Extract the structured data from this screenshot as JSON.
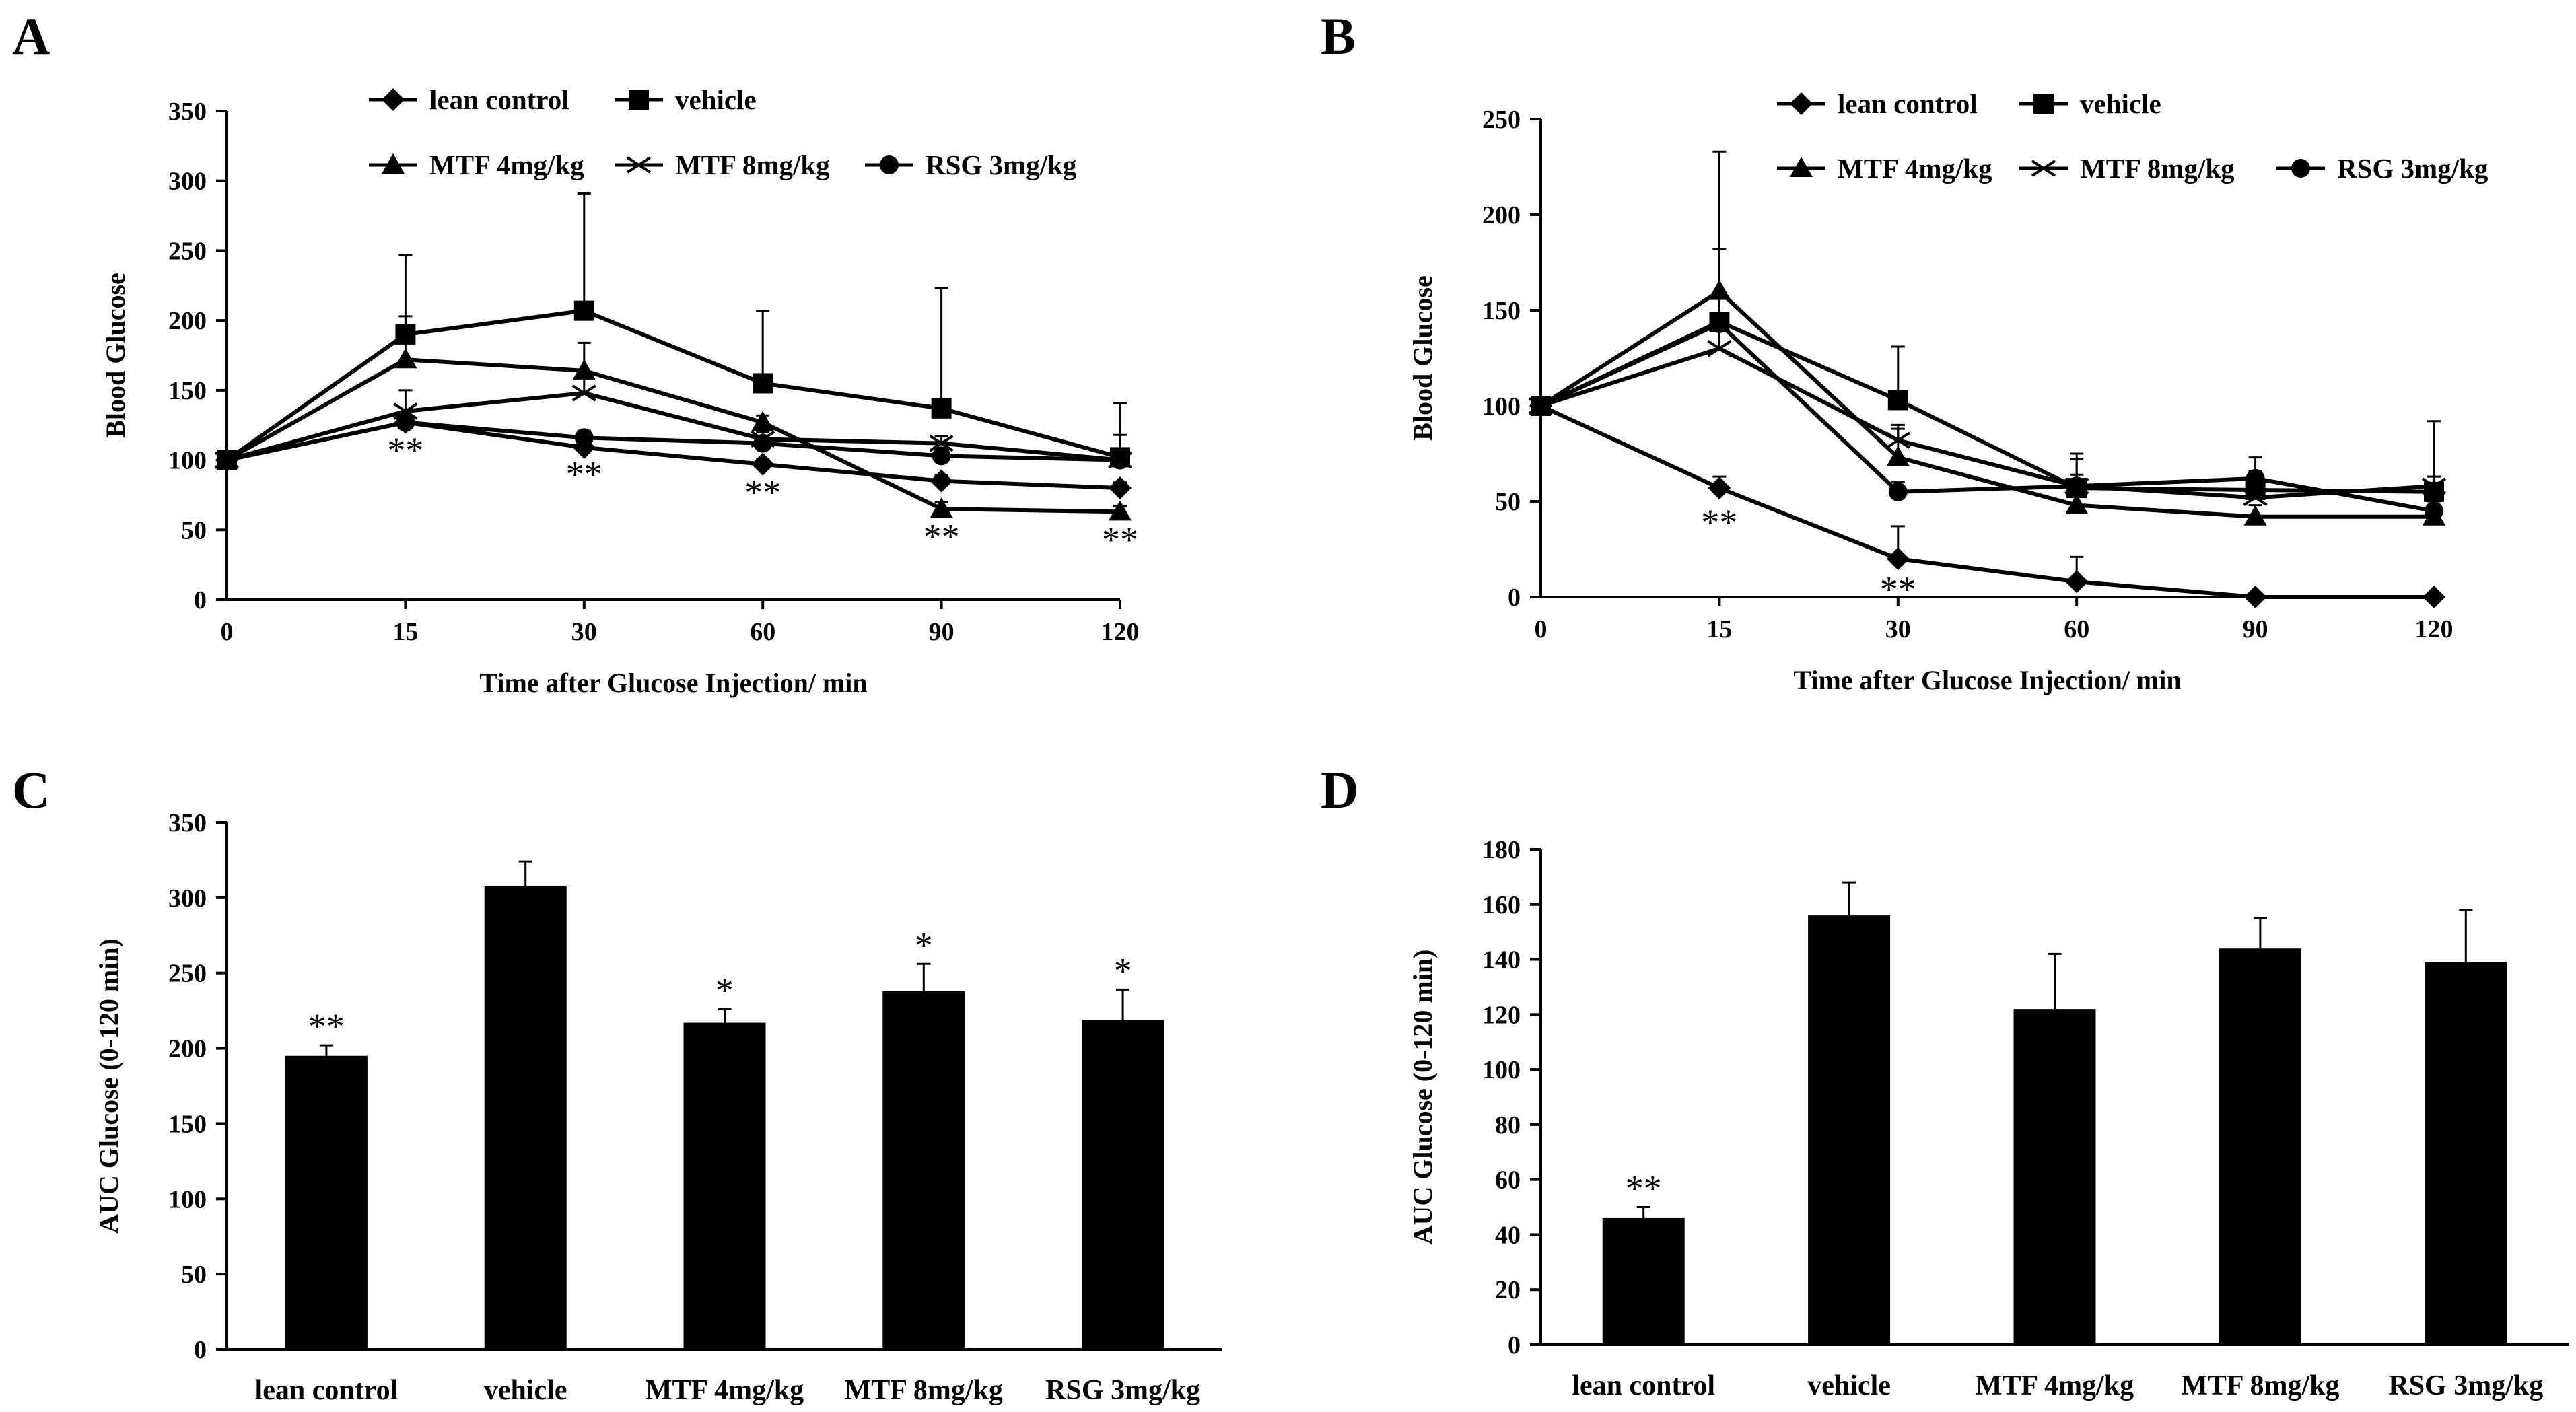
{
  "colors": {
    "ink": "#000000",
    "background": "#ffffff"
  },
  "chart_data": [
    {
      "panel": "A",
      "type": "line",
      "xlabel": "Time after Glucose Injection/ min",
      "ylabel": "Blood Glucose",
      "categories": [
        "0",
        "15",
        "30",
        "60",
        "90",
        "120"
      ],
      "ylim": [
        0,
        350
      ],
      "yticks": [
        "0",
        "50",
        "100",
        "150",
        "200",
        "250",
        "300",
        "350"
      ],
      "legend_location": "top",
      "series": [
        {
          "name": "lean control",
          "marker": "diamond",
          "values": [
            100,
            127,
            109,
            97,
            85,
            80
          ],
          "errors": [
            0,
            4,
            4,
            4,
            4,
            4
          ]
        },
        {
          "name": "vehicle",
          "marker": "square",
          "values": [
            100,
            190,
            207,
            155,
            137,
            102
          ],
          "errors": [
            0,
            57,
            84,
            52,
            86,
            39
          ]
        },
        {
          "name": "MTF 4mg/kg",
          "marker": "triangle",
          "values": [
            100,
            172,
            164,
            127,
            65,
            63
          ],
          "errors": [
            0,
            31,
            20,
            5,
            5,
            4
          ]
        },
        {
          "name": "MTF 8mg/kg",
          "marker": "x",
          "values": [
            100,
            135,
            148,
            115,
            112,
            100
          ],
          "errors": [
            0,
            15,
            15,
            5,
            5,
            5
          ]
        },
        {
          "name": "RSG 3mg/kg",
          "marker": "circle",
          "values": [
            100,
            127,
            116,
            112,
            103,
            100
          ],
          "errors": [
            0,
            5,
            5,
            5,
            5,
            18
          ]
        }
      ],
      "annotations": [
        {
          "category": "15",
          "label": "**",
          "y": 107
        },
        {
          "category": "30",
          "label": "**",
          "y": 90
        },
        {
          "category": "60",
          "label": "**",
          "y": 77
        },
        {
          "category": "90",
          "label": "**",
          "y": 45
        },
        {
          "category": "120",
          "label": "**",
          "y": 43
        }
      ]
    },
    {
      "panel": "B",
      "type": "line",
      "xlabel": "Time after Glucose Injection/ min",
      "ylabel": "Blood Glucose",
      "categories": [
        "0",
        "15",
        "30",
        "60",
        "90",
        "120"
      ],
      "ylim": [
        0,
        250
      ],
      "yticks": [
        "0",
        "50",
        "100",
        "150",
        "200",
        "250"
      ],
      "legend_location": "top",
      "series": [
        {
          "name": "lean control",
          "marker": "diamond",
          "values": [
            100,
            57,
            20,
            8,
            0,
            0
          ],
          "errors": [
            0,
            6,
            17,
            13,
            0,
            0
          ]
        },
        {
          "name": "vehicle",
          "marker": "square",
          "values": [
            100,
            144,
            103,
            57,
            56,
            55
          ],
          "errors": [
            0,
            89,
            28,
            18,
            10,
            37
          ]
        },
        {
          "name": "MTF 4mg/kg",
          "marker": "triangle",
          "values": [
            100,
            160,
            73,
            48,
            42,
            42
          ],
          "errors": [
            0,
            22,
            15,
            8,
            6,
            4
          ]
        },
        {
          "name": "MTF 8mg/kg",
          "marker": "x",
          "values": [
            100,
            130,
            82,
            58,
            52,
            58
          ],
          "errors": [
            0,
            10,
            8,
            6,
            6,
            5
          ]
        },
        {
          "name": "RSG 3mg/kg",
          "marker": "circle",
          "values": [
            100,
            143,
            55,
            58,
            62,
            45
          ],
          "errors": [
            0,
            5,
            5,
            14,
            11,
            5
          ]
        }
      ],
      "annotations": [
        {
          "category": "15",
          "label": "**",
          "y": 39
        },
        {
          "category": "30",
          "label": "**",
          "y": 4
        }
      ]
    },
    {
      "panel": "C",
      "type": "bar",
      "ylabel": "AUC Glucose (0-120 min)",
      "categories": [
        "lean control",
        "vehicle",
        "MTF 4mg/kg",
        "MTF 8mg/kg",
        "RSG 3mg/kg"
      ],
      "values": [
        195,
        308,
        217,
        238,
        219
      ],
      "errors": [
        7,
        16,
        9,
        18,
        20
      ],
      "significance": [
        "**",
        "",
        "*",
        "*",
        "*"
      ],
      "ylim": [
        0,
        350
      ],
      "yticks": [
        "0",
        "50",
        "100",
        "150",
        "200",
        "250",
        "300",
        "350"
      ]
    },
    {
      "panel": "D",
      "type": "bar",
      "ylabel": "AUC Glucose (0-120 min)",
      "categories": [
        "lean control",
        "vehicle",
        "MTF 4mg/kg",
        "MTF 8mg/kg",
        "RSG 3mg/kg"
      ],
      "values": [
        46,
        156,
        122,
        144,
        139
      ],
      "errors": [
        4,
        12,
        20,
        11,
        19
      ],
      "significance": [
        "**",
        "",
        "",
        "",
        ""
      ],
      "ylim": [
        0,
        180
      ],
      "yticks": [
        "0",
        "20",
        "40",
        "60",
        "80",
        "100",
        "120",
        "140",
        "160",
        "180"
      ]
    }
  ]
}
